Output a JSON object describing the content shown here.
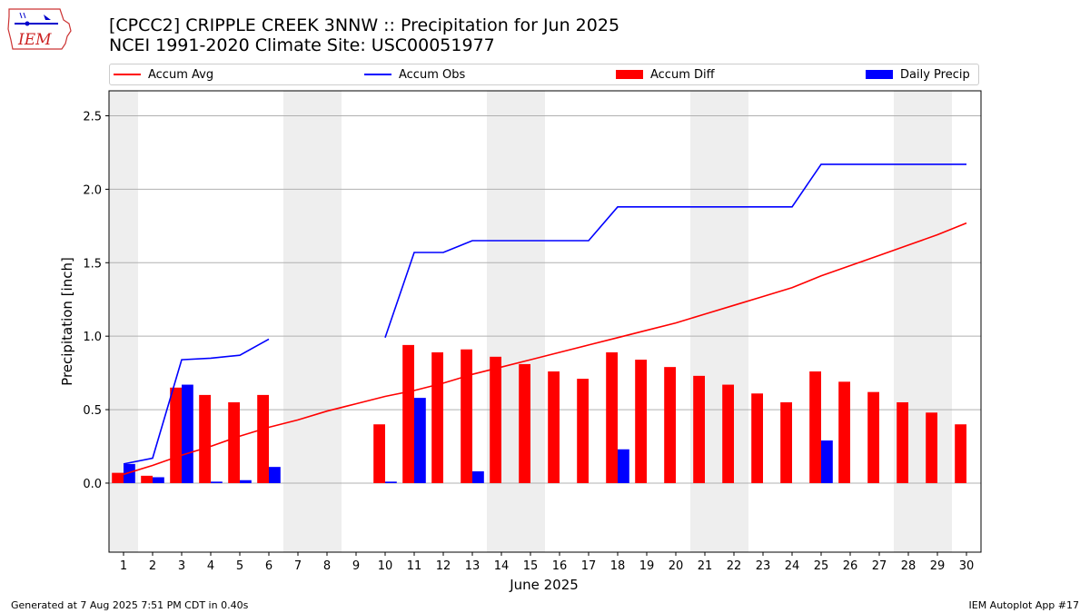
{
  "header": {
    "logo_text": "IEM",
    "title_line1": "[CPCC2] CRIPPLE CREEK 3NNW :: Precipitation for Jun 2025",
    "title_line2": "NCEI 1991-2020 Climate Site: USC00051977"
  },
  "legend": {
    "placement": "top",
    "items": [
      {
        "label": "Accum Avg",
        "color": "#ff0000",
        "kind": "line"
      },
      {
        "label": "Accum Obs",
        "color": "#0000ff",
        "kind": "line"
      },
      {
        "label": "Accum Diff",
        "color": "#ff0000",
        "kind": "bar"
      },
      {
        "label": "Daily Precip",
        "color": "#0000ff",
        "kind": "bar"
      }
    ]
  },
  "chart_data": {
    "type": "bar",
    "xlabel": "June 2025",
    "ylabel": "Precipitation [inch]",
    "x": [
      1,
      2,
      3,
      4,
      5,
      6,
      7,
      8,
      9,
      10,
      11,
      12,
      13,
      14,
      15,
      16,
      17,
      18,
      19,
      20,
      21,
      22,
      23,
      24,
      25,
      26,
      27,
      28,
      29,
      30
    ],
    "xlim": [
      0.5,
      30.5
    ],
    "ylim": [
      -0.47,
      2.67
    ],
    "yticks": [
      0.0,
      0.5,
      1.0,
      1.5,
      2.0,
      2.5
    ],
    "ytick_labels": [
      "0.0",
      "0.5",
      "1.0",
      "1.5",
      "2.0",
      "2.5"
    ],
    "grid": "horizontal",
    "weekend_shading": [
      [
        0.5,
        1.5
      ],
      [
        6.5,
        8.5
      ],
      [
        13.5,
        15.5
      ],
      [
        20.5,
        22.5
      ],
      [
        27.5,
        29.5
      ]
    ],
    "series": [
      {
        "name": "Accum Avg",
        "kind": "line",
        "color": "#ff0000",
        "values": [
          0.06,
          0.12,
          0.19,
          0.25,
          0.32,
          0.38,
          0.43,
          0.49,
          0.54,
          0.59,
          0.63,
          0.68,
          0.74,
          0.79,
          0.84,
          0.89,
          0.94,
          0.99,
          1.04,
          1.09,
          1.15,
          1.21,
          1.27,
          1.33,
          1.41,
          1.48,
          1.55,
          1.62,
          1.69,
          1.77
        ]
      },
      {
        "name": "Accum Obs",
        "kind": "line",
        "color": "#0000ff",
        "values": [
          0.13,
          0.17,
          0.84,
          0.85,
          0.87,
          0.98,
          null,
          null,
          null,
          0.99,
          1.57,
          1.57,
          1.65,
          1.65,
          1.65,
          1.65,
          1.65,
          1.88,
          1.88,
          1.88,
          1.88,
          1.88,
          1.88,
          1.88,
          2.17,
          2.17,
          2.17,
          2.17,
          2.17,
          2.17
        ]
      },
      {
        "name": "Accum Diff",
        "kind": "bar",
        "color": "#ff0000",
        "values": [
          0.07,
          0.05,
          0.65,
          0.6,
          0.55,
          0.6,
          null,
          null,
          null,
          0.4,
          0.94,
          0.89,
          0.91,
          0.86,
          0.81,
          0.76,
          0.71,
          0.89,
          0.84,
          0.79,
          0.73,
          0.67,
          0.61,
          0.55,
          0.76,
          0.69,
          0.62,
          0.55,
          0.48,
          0.4
        ]
      },
      {
        "name": "Daily Precip",
        "kind": "bar",
        "color": "#0000ff",
        "values": [
          0.13,
          0.04,
          0.67,
          0.01,
          0.02,
          0.11,
          null,
          null,
          null,
          0.01,
          0.58,
          0.0,
          0.08,
          0.0,
          0.0,
          0.0,
          0.0,
          0.23,
          0.0,
          0.0,
          0.0,
          0.0,
          0.0,
          0.0,
          0.29,
          0.0,
          0.0,
          0.0,
          0.0,
          0.0
        ]
      }
    ]
  },
  "footer": {
    "left": "Generated at 7 Aug 2025 7:51 PM CDT in 0.40s",
    "right": "IEM Autoplot App #17"
  }
}
